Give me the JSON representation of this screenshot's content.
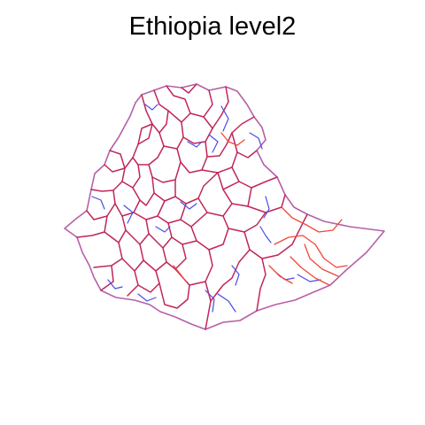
{
  "title": "Ethiopia level2",
  "colors": {
    "background": "#ffffff",
    "outline": "#b660a8",
    "admin_primary": "#c0265a",
    "admin_blue": "#4b4bea",
    "admin_red": "#f0483a"
  }
}
